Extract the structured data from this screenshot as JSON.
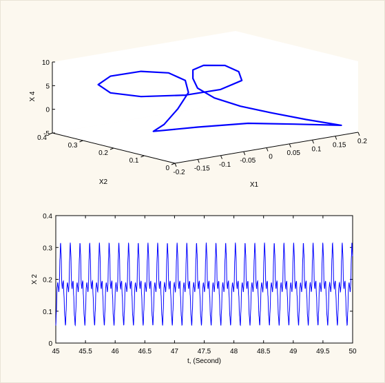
{
  "chart_data": [
    {
      "type": "line",
      "projection": "3d",
      "xlabel": "X1",
      "ylabel": "X2",
      "zlabel": "X 4",
      "xlim": [
        -0.2,
        0.2
      ],
      "ylim": [
        0,
        0.4
      ],
      "zlim": [
        -5,
        10
      ],
      "x_ticks": [
        "-0.2",
        "-0.15",
        "-0.1",
        "-0.05",
        "0",
        "0.05",
        "0.1",
        "0.15",
        "0.2"
      ],
      "y_ticks": [
        "0",
        "0.1",
        "0.2",
        "0.3",
        "0.4"
      ],
      "z_ticks": [
        "-5",
        "0",
        "5",
        "10"
      ],
      "grid": false,
      "line_color": "#0000ff",
      "series": [
        {
          "points": [
            [
              0.19,
              0.04,
              -4.0
            ],
            [
              0.14,
              0.08,
              -2.6
            ],
            [
              0.09,
              0.12,
              -1.0
            ],
            [
              0.05,
              0.16,
              0.4
            ],
            [
              0.02,
              0.2,
              2.0
            ],
            [
              0.01,
              0.24,
              3.6
            ],
            [
              0.02,
              0.27,
              5.0
            ],
            [
              0.04,
              0.3,
              6.0
            ],
            [
              0.07,
              0.31,
              6.3
            ],
            [
              0.11,
              0.3,
              5.8
            ],
            [
              0.12,
              0.27,
              4.8
            ],
            [
              0.1,
              0.23,
              3.9
            ],
            [
              0.04,
              0.21,
              3.3
            ],
            [
              -0.03,
              0.22,
              3.1
            ],
            [
              -0.1,
              0.26,
              3.3
            ],
            [
              -0.14,
              0.3,
              4.1
            ],
            [
              -0.14,
              0.34,
              5.2
            ],
            [
              -0.1,
              0.36,
              6.0
            ],
            [
              -0.04,
              0.35,
              6.2
            ],
            [
              0.0,
              0.32,
              5.7
            ],
            [
              0.01,
              0.28,
              4.6
            ],
            [
              -0.01,
              0.24,
              3.0
            ],
            [
              -0.06,
              0.2,
              1.0
            ],
            [
              -0.11,
              0.17,
              -1.0
            ],
            [
              -0.14,
              0.16,
              -1.8
            ],
            [
              -0.07,
              0.12,
              -1.4
            ],
            [
              0.02,
              0.09,
              -1.6
            ],
            [
              0.1,
              0.06,
              -2.6
            ],
            [
              0.19,
              0.04,
              -4.0
            ]
          ]
        }
      ]
    },
    {
      "type": "line",
      "xlabel": "t, (Second)",
      "ylabel": "X 2",
      "xlim": [
        45,
        50
      ],
      "ylim": [
        0,
        0.4
      ],
      "x_ticks": [
        "45",
        "45.5",
        "46",
        "46.5",
        "47",
        "47.5",
        "48",
        "48.5",
        "49",
        "49.5",
        "50"
      ],
      "y_ticks": [
        "0",
        "0.1",
        "0.2",
        "0.3",
        "0.4"
      ],
      "grid": false,
      "line_color": "#0000ff",
      "period": 0.1636,
      "cycle_shape": [
        [
          0.0,
          0.055
        ],
        [
          0.06,
          0.1
        ],
        [
          0.14,
          0.175
        ],
        [
          0.2,
          0.19
        ],
        [
          0.26,
          0.175
        ],
        [
          0.31,
          0.16
        ],
        [
          0.36,
          0.18
        ],
        [
          0.43,
          0.265
        ],
        [
          0.49,
          0.315
        ],
        [
          0.55,
          0.28
        ],
        [
          0.62,
          0.185
        ],
        [
          0.68,
          0.17
        ],
        [
          0.73,
          0.19
        ],
        [
          0.78,
          0.195
        ],
        [
          0.84,
          0.15
        ],
        [
          0.92,
          0.085
        ],
        [
          1.0,
          0.055
        ]
      ]
    }
  ]
}
